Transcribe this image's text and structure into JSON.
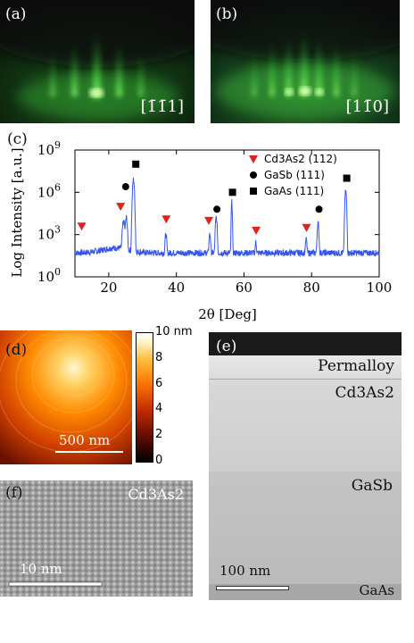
{
  "panel_a": {
    "label": "(a)",
    "direction": "[1̄1̄1]"
  },
  "panel_b": {
    "label": "(b)",
    "direction": "[11̄0]"
  },
  "panel_c": {
    "label": "(c)",
    "chart_data": {
      "type": "line",
      "xlabel": "2θ [Deg]",
      "ylabel": "Log Intensity [a.u.]",
      "xlim": [
        10,
        100
      ],
      "ylim_log10": [
        0,
        9
      ],
      "x_ticks": [
        "20",
        "40",
        "60",
        "80",
        "100"
      ],
      "y_ticks": [
        "10",
        "10",
        "10",
        "10"
      ],
      "y_tick_exponents": [
        "0",
        "3",
        "6",
        "9"
      ],
      "series_color": "#3355ee",
      "baseline_log": 1.7,
      "peaks": [
        {
          "x": 24.4,
          "log_intensity": 3.9,
          "width": 0.5
        },
        {
          "x": 25.2,
          "log_intensity": 4.2,
          "width": 0.4
        },
        {
          "x": 27.3,
          "log_intensity": 6.9,
          "width": 0.35
        },
        {
          "x": 36.9,
          "log_intensity": 3.0,
          "width": 0.35
        },
        {
          "x": 49.9,
          "log_intensity": 3.0,
          "width": 0.35
        },
        {
          "x": 51.8,
          "log_intensity": 4.2,
          "width": 0.35
        },
        {
          "x": 56.4,
          "log_intensity": 5.3,
          "width": 0.2
        },
        {
          "x": 63.5,
          "log_intensity": 2.4,
          "width": 0.3
        },
        {
          "x": 78.4,
          "log_intensity": 2.6,
          "width": 0.35
        },
        {
          "x": 81.9,
          "log_intensity": 3.8,
          "width": 0.35
        },
        {
          "x": 90.1,
          "log_intensity": 6.1,
          "width": 0.3
        }
      ],
      "markers": [
        {
          "symbol": "triangle",
          "x": 12.0,
          "log_y": 3.6
        },
        {
          "symbol": "triangle",
          "x": 23.5,
          "log_y": 5.0
        },
        {
          "symbol": "triangle",
          "x": 37.0,
          "log_y": 4.1
        },
        {
          "symbol": "triangle",
          "x": 49.6,
          "log_y": 4.0
        },
        {
          "symbol": "triangle",
          "x": 63.6,
          "log_y": 3.3
        },
        {
          "symbol": "triangle",
          "x": 78.5,
          "log_y": 3.5
        },
        {
          "symbol": "circle",
          "x": 25.0,
          "log_y": 6.4
        },
        {
          "symbol": "circle",
          "x": 52.0,
          "log_y": 4.8
        },
        {
          "symbol": "circle",
          "x": 82.2,
          "log_y": 4.8
        },
        {
          "symbol": "square",
          "x": 28.0,
          "log_y": 8.0
        },
        {
          "symbol": "square",
          "x": 56.6,
          "log_y": 6.0
        },
        {
          "symbol": "square",
          "x": 90.4,
          "log_y": 7.0
        }
      ],
      "legend": [
        {
          "symbol": "triangle",
          "color": "#dd2222",
          "label": "Cd3As2 (112)"
        },
        {
          "symbol": "circle",
          "color": "#000000",
          "label": "GaSb (111)"
        },
        {
          "symbol": "square",
          "color": "#000000",
          "label": "GaAs (111)"
        }
      ]
    }
  },
  "panel_d": {
    "label": "(d)",
    "scale": "500 nm",
    "colorbar_ticks": [
      "10 nm",
      "8",
      "6",
      "4",
      "2",
      "0"
    ]
  },
  "panel_e": {
    "label": "(e)",
    "layers": [
      "Permalloy",
      "Cd3As2",
      "GaSb",
      "GaAs"
    ],
    "scale": "100 nm"
  },
  "panel_f": {
    "label": "(f)",
    "material": "Cd3As2",
    "scale": "10 nm"
  }
}
